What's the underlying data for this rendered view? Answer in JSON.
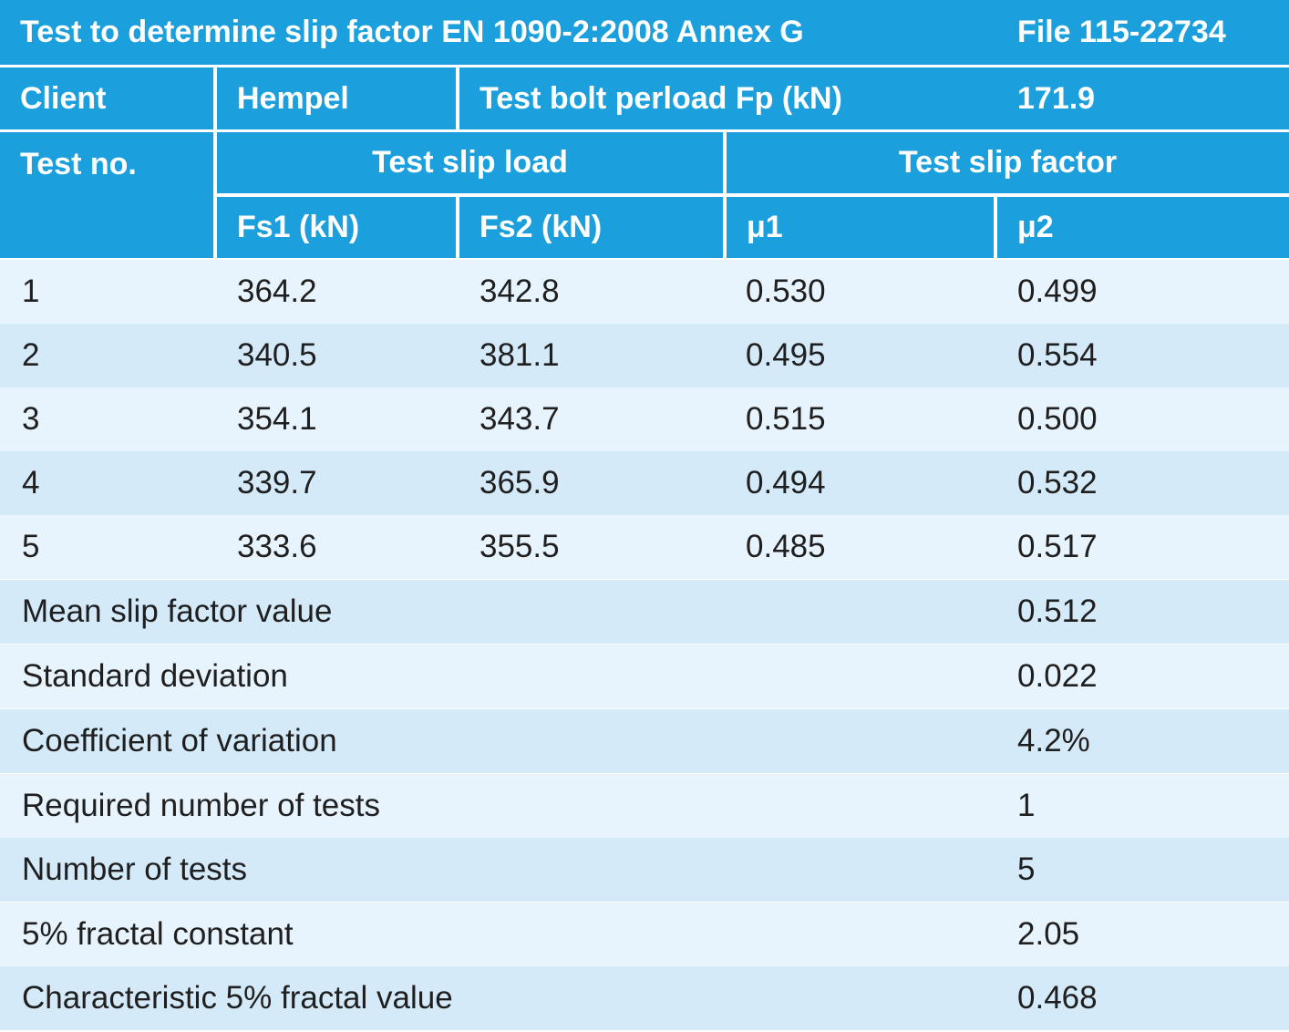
{
  "header": {
    "title": "Test to determine slip factor EN 1090-2:2008 Annex G",
    "file": "File 115-22734",
    "client_label": "Client",
    "client_value": "Hempel",
    "preload_label": "Test bolt perload Fp (kN)",
    "preload_value": "171.9",
    "test_no_label": "Test no.",
    "slip_load_label": "Test slip load",
    "slip_factor_label": "Test slip factor",
    "fs1_label": "Fs1 (kN)",
    "fs2_label": "Fs2 (kN)",
    "mu1_label": "μ1",
    "mu2_label": "μ2"
  },
  "tests": [
    {
      "no": "1",
      "fs1": "364.2",
      "fs2": "342.8",
      "mu1": "0.530",
      "mu2": "0.499"
    },
    {
      "no": "2",
      "fs1": "340.5",
      "fs2": "381.1",
      "mu1": "0.495",
      "mu2": "0.554"
    },
    {
      "no": "3",
      "fs1": "354.1",
      "fs2": "343.7",
      "mu1": "0.515",
      "mu2": "0.500"
    },
    {
      "no": "4",
      "fs1": "339.7",
      "fs2": "365.9",
      "mu1": "0.494",
      "mu2": "0.532"
    },
    {
      "no": "5",
      "fs1": "333.6",
      "fs2": "355.5",
      "mu1": "0.485",
      "mu2": "0.517"
    }
  ],
  "summary": [
    {
      "label": "Mean slip factor value",
      "value": "0.512"
    },
    {
      "label": "Standard deviation",
      "value": "0.022"
    },
    {
      "label": "Coefficient of variation",
      "value": "4.2%"
    },
    {
      "label": "Required number of tests",
      "value": "1"
    },
    {
      "label": "Number of tests",
      "value": "5"
    },
    {
      "label": "5% fractal constant",
      "value": "2.05"
    },
    {
      "label": "Characteristic 5% fractal value",
      "value": "0.468"
    }
  ],
  "colors": {
    "header_blue": "#1ba0dd",
    "row_light": "#e8f4fd",
    "row_dark": "#d4eaf9"
  }
}
